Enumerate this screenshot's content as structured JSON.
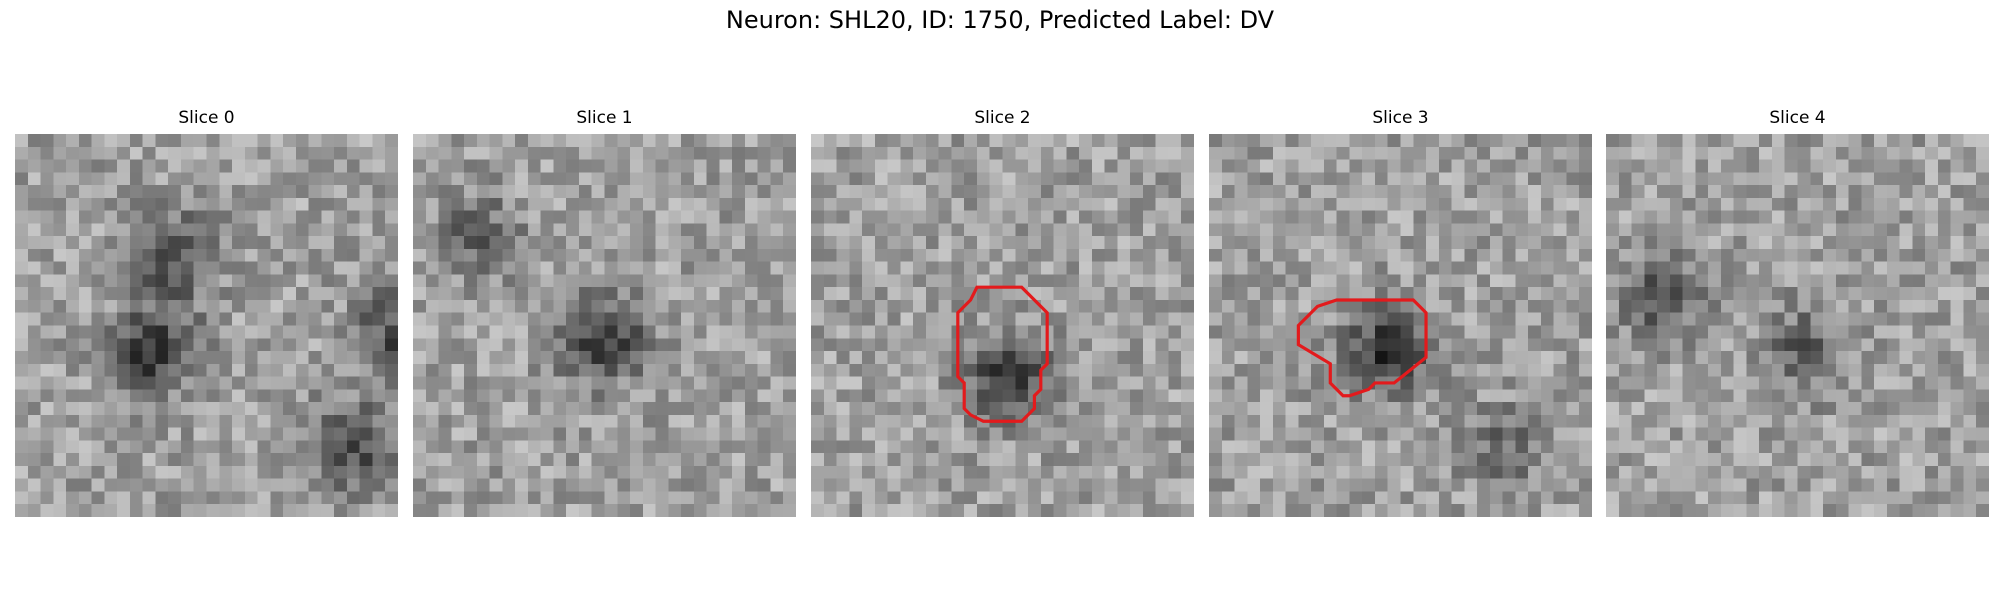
{
  "figure": {
    "title": "Neuron: SHL20, ID: 1750, Predicted Label: DV",
    "contour_color": "#e31a1c"
  },
  "panels": [
    {
      "title": "Slice 0",
      "has_contour": false,
      "dark_blobs": [
        [
          0.72,
          0.4,
          0.3
        ],
        [
          0.9,
          0.35,
          0.55
        ],
        [
          0.8,
          0.85,
          0.8
        ],
        [
          0.7,
          0.98,
          0.5
        ]
      ]
    },
    {
      "title": "Slice 1",
      "has_contour": false,
      "dark_blobs": [
        [
          0.85,
          0.48,
          0.52
        ],
        [
          0.5,
          0.15,
          0.25
        ]
      ]
    },
    {
      "title": "Slice 2",
      "has_contour": true,
      "dark_blobs": [
        [
          0.95,
          0.5,
          0.62
        ]
      ]
    },
    {
      "title": "Slice 3",
      "has_contour": true,
      "dark_blobs": [
        [
          0.9,
          0.45,
          0.55
        ],
        [
          0.45,
          0.75,
          0.8
        ]
      ]
    },
    {
      "title": "Slice 4",
      "has_contour": false,
      "dark_blobs": [
        [
          0.65,
          0.12,
          0.4
        ],
        [
          0.55,
          0.5,
          0.55
        ]
      ]
    }
  ],
  "contours": {
    "Slice 2": [
      [
        13,
        12
      ],
      [
        16.5,
        12
      ],
      [
        18.5,
        14
      ],
      [
        18.5,
        18
      ],
      [
        18,
        18.5
      ],
      [
        18,
        20
      ],
      [
        17.5,
        20.5
      ],
      [
        17.5,
        21.5
      ],
      [
        16.5,
        22.5
      ],
      [
        13.5,
        22.5
      ],
      [
        12.5,
        22
      ],
      [
        12,
        21.5
      ],
      [
        12,
        19.5
      ],
      [
        11.5,
        19
      ],
      [
        11.5,
        14
      ],
      [
        12.5,
        13
      ]
    ],
    "Slice 3": [
      [
        11,
        13
      ],
      [
        16,
        13
      ],
      [
        17,
        14
      ],
      [
        17,
        17.5
      ],
      [
        14.5,
        19.5
      ],
      [
        13,
        19.5
      ],
      [
        12.5,
        20
      ],
      [
        11,
        20.5
      ],
      [
        10.5,
        20.5
      ],
      [
        10,
        20
      ],
      [
        9.5,
        19.5
      ],
      [
        9.5,
        18
      ],
      [
        7,
        16.5
      ],
      [
        7,
        15
      ],
      [
        8.5,
        13.5
      ],
      [
        10,
        13
      ]
    ]
  }
}
